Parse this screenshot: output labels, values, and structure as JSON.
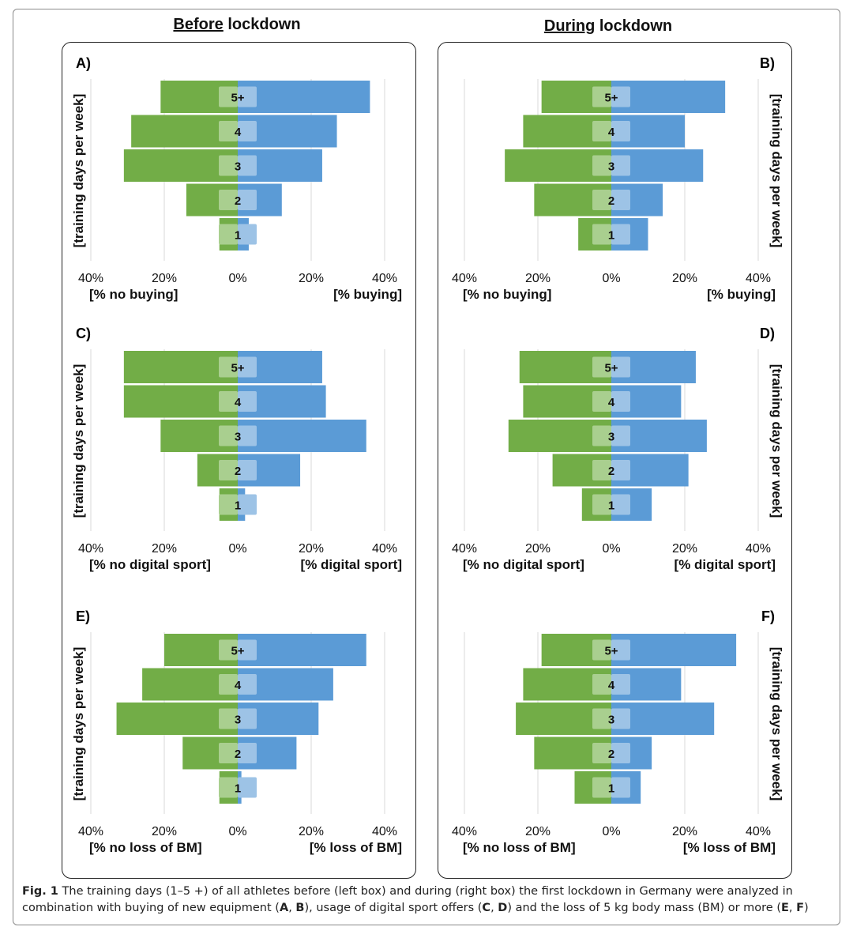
{
  "headings": {
    "before": {
      "underlined": "Before",
      "rest": " lockdown"
    },
    "during": {
      "underlined": "During",
      "rest": " lockdown"
    }
  },
  "colors": {
    "left_bar": "#72ad47",
    "right_bar": "#5b9bd6",
    "label_box": "#a9cf8f",
    "label_box_right": "#9dc3e6",
    "grid": "#d9d9d9"
  },
  "chart_data": [
    {
      "id": "A",
      "label": "A)",
      "type": "bar",
      "orientation": "horizontal-diverging",
      "ylabel": "[training days per week]",
      "categories": [
        "5+",
        "4",
        "3",
        "2",
        "1"
      ],
      "series": [
        {
          "name": "[% no buying]",
          "side": "left",
          "values": [
            21,
            29,
            31,
            14,
            5
          ]
        },
        {
          "name": "[% buying]",
          "side": "right",
          "values": [
            36,
            27,
            23,
            12,
            3
          ]
        }
      ],
      "ticks": [
        "40%",
        "20%",
        "0%",
        "20%",
        "40%"
      ],
      "xlim": [
        -40,
        40
      ]
    },
    {
      "id": "B",
      "label": "B)",
      "type": "bar",
      "orientation": "horizontal-diverging",
      "ylabel": "[training days per week]",
      "categories": [
        "5+",
        "4",
        "3",
        "2",
        "1"
      ],
      "series": [
        {
          "name": "[% no buying]",
          "side": "left",
          "values": [
            19,
            24,
            29,
            21,
            9
          ]
        },
        {
          "name": "[% buying]",
          "side": "right",
          "values": [
            31,
            20,
            25,
            14,
            10
          ]
        }
      ],
      "ticks": [
        "40%",
        "20%",
        "0%",
        "20%",
        "40%"
      ],
      "xlim": [
        -40,
        40
      ]
    },
    {
      "id": "C",
      "label": "C)",
      "type": "bar",
      "orientation": "horizontal-diverging",
      "ylabel": "[training days per week]",
      "categories": [
        "5+",
        "4",
        "3",
        "2",
        "1"
      ],
      "series": [
        {
          "name": "[% no digital sport]",
          "side": "left",
          "values": [
            31,
            31,
            21,
            11,
            5
          ]
        },
        {
          "name": "[% digital sport]",
          "side": "right",
          "values": [
            23,
            24,
            35,
            17,
            2
          ]
        }
      ],
      "ticks": [
        "40%",
        "20%",
        "0%",
        "20%",
        "40%"
      ],
      "xlim": [
        -40,
        40
      ]
    },
    {
      "id": "D",
      "label": "D)",
      "type": "bar",
      "orientation": "horizontal-diverging",
      "ylabel": "[training days per week]",
      "categories": [
        "5+",
        "4",
        "3",
        "2",
        "1"
      ],
      "series": [
        {
          "name": "[% no digital sport]",
          "side": "left",
          "values": [
            25,
            24,
            28,
            16,
            8
          ]
        },
        {
          "name": "[% digital sport]",
          "side": "right",
          "values": [
            23,
            19,
            26,
            21,
            11
          ]
        }
      ],
      "ticks": [
        "40%",
        "20%",
        "0%",
        "20%",
        "40%"
      ],
      "xlim": [
        -40,
        40
      ]
    },
    {
      "id": "E",
      "label": "E)",
      "type": "bar",
      "orientation": "horizontal-diverging",
      "ylabel": "[training days per week]",
      "categories": [
        "5+",
        "4",
        "3",
        "2",
        "1"
      ],
      "series": [
        {
          "name": "[% no loss of BM]",
          "side": "left",
          "values": [
            20,
            26,
            33,
            15,
            5
          ]
        },
        {
          "name": "[% loss of BM]",
          "side": "right",
          "values": [
            35,
            26,
            22,
            16,
            1
          ]
        }
      ],
      "ticks": [
        "40%",
        "20%",
        "0%",
        "20%",
        "40%"
      ],
      "xlim": [
        -40,
        40
      ]
    },
    {
      "id": "F",
      "label": "F)",
      "type": "bar",
      "orientation": "horizontal-diverging",
      "ylabel": "[training days per week]",
      "categories": [
        "5+",
        "4",
        "3",
        "2",
        "1"
      ],
      "series": [
        {
          "name": "[% no loss of BM]",
          "side": "left",
          "values": [
            19,
            24,
            26,
            21,
            10
          ]
        },
        {
          "name": "[% loss of BM]",
          "side": "right",
          "values": [
            34,
            19,
            28,
            11,
            8
          ]
        }
      ],
      "ticks": [
        "40%",
        "20%",
        "0%",
        "20%",
        "40%"
      ],
      "xlim": [
        -40,
        40
      ]
    }
  ],
  "caption": {
    "fig": "Fig. 1",
    "text_1": "  The training days (1–5 +) of all athletes before (left box) and during (right box) the first lockdown in Germany were analyzed in combination with buying of new equipment (",
    "b1": "A",
    "sep1": ", ",
    "b2": "B",
    "text_2": "), usage of digital sport offers (",
    "b3": "C",
    "sep2": ", ",
    "b4": "D",
    "text_3": ") and the loss of 5 kg body mass (BM) or more (",
    "b5": "E",
    "sep3": ", ",
    "b6": "F",
    "text_4": ")"
  }
}
